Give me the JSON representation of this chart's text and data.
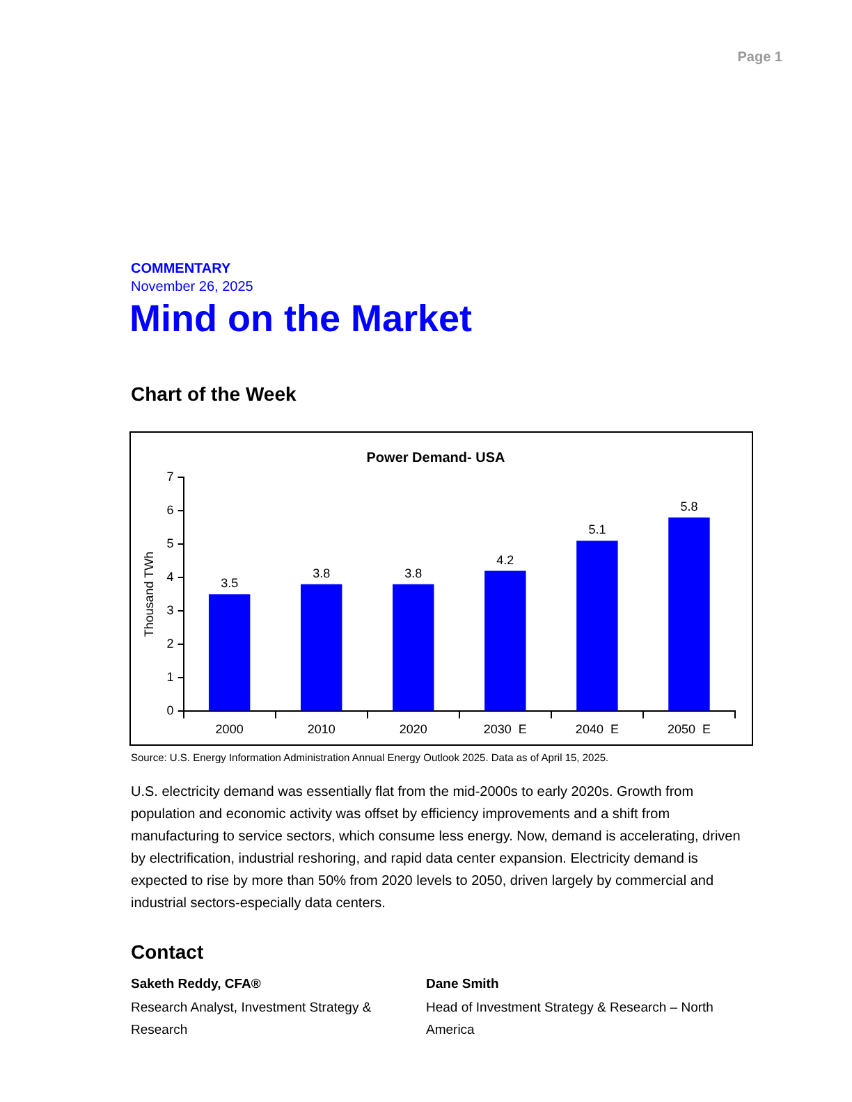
{
  "chart_data": {
    "type": "bar",
    "title": "Power Demand- USA",
    "ylabel": "Thousand TWh",
    "categories": [
      "2000",
      "2010",
      "2020",
      "2030  E",
      "2040  E",
      "2050  E"
    ],
    "values": [
      3.5,
      3.8,
      3.8,
      4.2,
      5.1,
      5.8
    ],
    "color": "#0000ff",
    "ylim": [
      0,
      7
    ],
    "yticks": [
      0,
      1,
      2,
      3,
      4,
      5,
      6,
      7
    ],
    "grid": false,
    "legend": false,
    "data_labels": true,
    "annotations": [
      "Page 1",
      "COMMENTARY",
      "November 26, 2025",
      "Mind on the Market",
      "Chart of the Week",
      "Source: U.S. Energy Information Administration Annual Energy Outlook 2025. Data as of April 15, 2025.",
      "U.S. electricity demand was essentially flat from the mid-2000s to early 2020s. Growth from population and economic activity was offset by efficiency improvements and a shift from manufacturing to service sectors, which consume less energy. Now, demand is accelerating, driven by electrification, industrial reshoring, and rapid data center expansion. Electricity demand is expected to rise by more than 50% from 2020 levels to 2050, driven largely by commercial and industrial sectors-especially data centers.",
      "Contact",
      "Saketh Reddy, CFA®",
      "Research Analyst, Investment Strategy & Research",
      "Dane Smith",
      "Head of Investment Strategy & Research – North America"
    ]
  }
}
